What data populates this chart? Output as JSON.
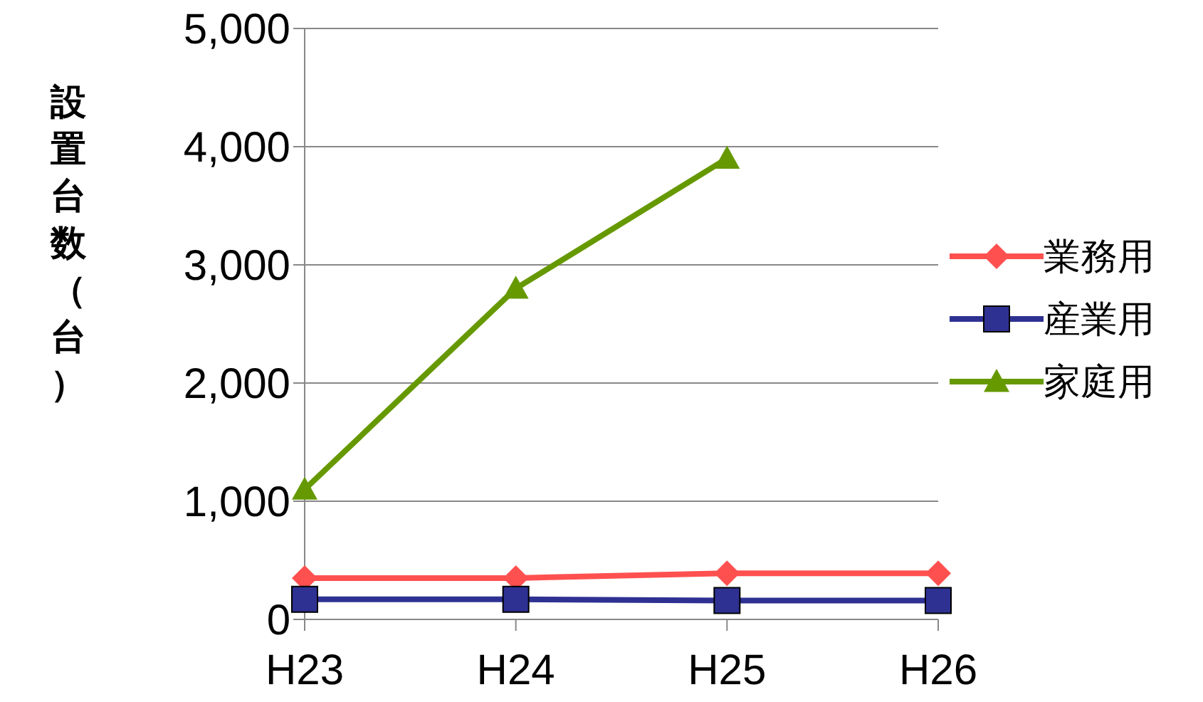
{
  "chart_data": {
    "type": "line",
    "ylabel": "設置台数（台）",
    "categories": [
      "H23",
      "H24",
      "H25",
      "H26"
    ],
    "series": [
      {
        "name": "業務用",
        "color": "#ff5050",
        "marker": "diamond",
        "values": [
          350,
          350,
          390,
          390
        ]
      },
      {
        "name": "産業用",
        "color": "#2e3192",
        "marker": "square",
        "values": [
          170,
          170,
          160,
          160
        ]
      },
      {
        "name": "家庭用",
        "color": "#669900",
        "marker": "triangle",
        "values": [
          1100,
          2800,
          3900,
          null
        ]
      }
    ],
    "ylim": [
      0,
      5000
    ],
    "yticks": [
      0,
      {
        "value": 1000,
        "label": "1,000"
      },
      {
        "value": 2000,
        "label": "2,000"
      },
      {
        "value": 3000,
        "label": "3,000"
      },
      {
        "value": 4000,
        "label": "4,000"
      },
      {
        "value": 5000,
        "label": "5,000"
      }
    ],
    "grid": "y",
    "legend": "right"
  }
}
